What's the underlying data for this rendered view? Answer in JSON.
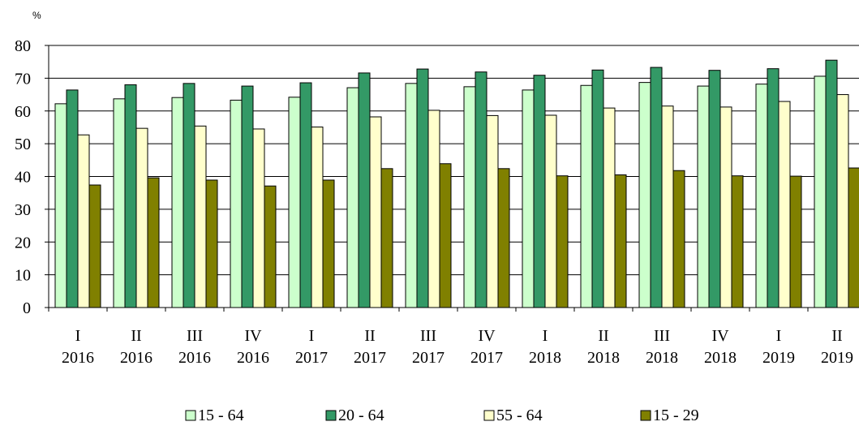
{
  "chart_data": {
    "type": "bar",
    "ylabel": "%",
    "ylim": [
      0,
      80
    ],
    "yticks": [
      0,
      10,
      20,
      30,
      40,
      50,
      60,
      70,
      80
    ],
    "grid": true,
    "legend_position": "bottom",
    "categories": [
      {
        "quarter": "I",
        "year": "2016"
      },
      {
        "quarter": "II",
        "year": "2016"
      },
      {
        "quarter": "III",
        "year": "2016"
      },
      {
        "quarter": "IV",
        "year": "2016"
      },
      {
        "quarter": "I",
        "year": "2017"
      },
      {
        "quarter": "II",
        "year": "2017"
      },
      {
        "quarter": "III",
        "year": "2017"
      },
      {
        "quarter": "IV",
        "year": "2017"
      },
      {
        "quarter": "I",
        "year": "2018"
      },
      {
        "quarter": "II",
        "year": "2018"
      },
      {
        "quarter": "III",
        "year": "2018"
      },
      {
        "quarter": "IV",
        "year": "2018"
      },
      {
        "quarter": "I",
        "year": "2019"
      },
      {
        "quarter": "II",
        "year": "2019"
      }
    ],
    "series": [
      {
        "name": "15 - 64",
        "color": "#ccffcc",
        "values": [
          62.2,
          63.7,
          64.1,
          63.3,
          64.2,
          67.1,
          68.4,
          67.4,
          66.4,
          67.8,
          68.7,
          67.6,
          68.2,
          70.6
        ]
      },
      {
        "name": "20 - 64",
        "color": "#339966",
        "values": [
          66.4,
          68.0,
          68.4,
          67.6,
          68.6,
          71.6,
          72.8,
          71.9,
          70.9,
          72.5,
          73.3,
          72.4,
          72.9,
          75.5
        ]
      },
      {
        "name": "55 - 64",
        "color": "#ffffcc",
        "values": [
          52.7,
          54.7,
          55.4,
          54.5,
          55.1,
          58.2,
          60.2,
          58.6,
          58.7,
          60.9,
          61.5,
          61.2,
          62.9,
          65.0
        ]
      },
      {
        "name": "15 - 29",
        "color": "#808000",
        "values": [
          37.4,
          39.6,
          38.9,
          37.1,
          38.9,
          42.4,
          43.9,
          42.4,
          40.2,
          40.5,
          41.8,
          40.2,
          40.1,
          42.6
        ]
      }
    ]
  }
}
